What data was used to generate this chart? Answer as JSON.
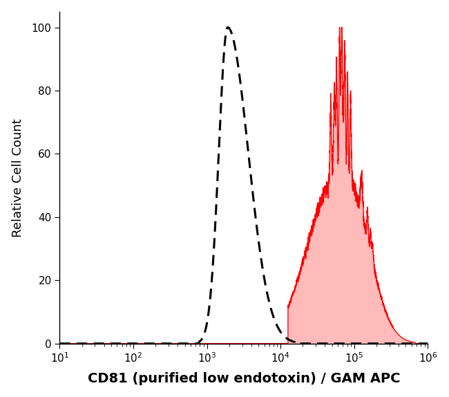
{
  "title": "",
  "xlabel": "CD81 (purified low endotoxin) / GAM APC",
  "ylabel": "Relative Cell Count",
  "ylim": [
    0,
    105
  ],
  "yticks": [
    0,
    20,
    40,
    60,
    80,
    100
  ],
  "background_color": "#ffffff",
  "dashed_color": "#000000",
  "red_line_color": "#ff0000",
  "red_fill_color": "#ff6666",
  "red_fill_alpha": 0.45,
  "dashed_peak_log": 3.28,
  "red_peak_log": 4.83,
  "xlabel_fontsize": 14,
  "ylabel_fontsize": 13,
  "tick_fontsize": 11
}
